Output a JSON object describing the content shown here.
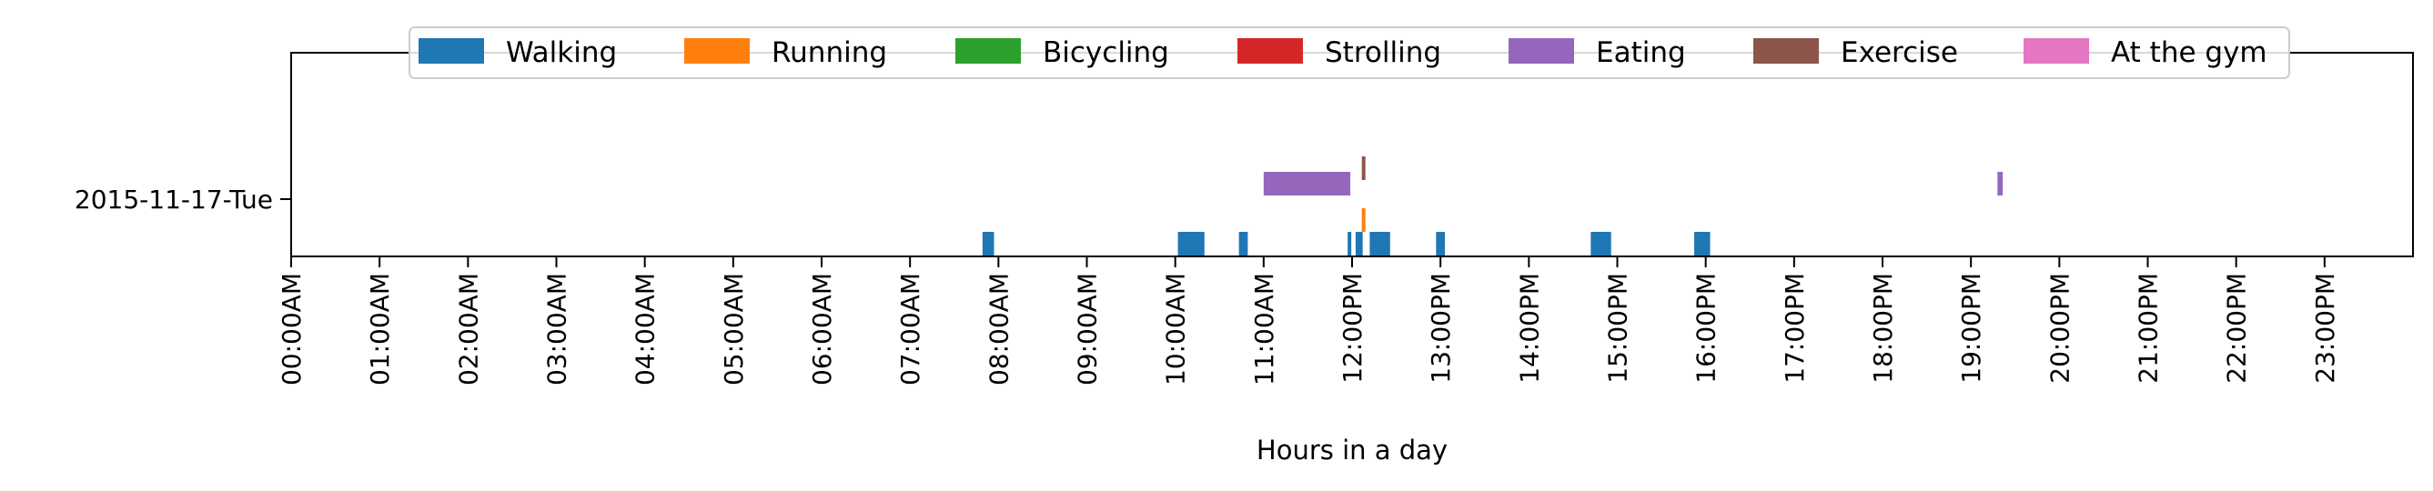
{
  "chart_data": {
    "type": "timeline",
    "xlabel": "Hours in a day",
    "ylabel": "",
    "xlim": [
      0,
      24
    ],
    "x_ticks": [
      {
        "value": 0,
        "label": "00:00AM"
      },
      {
        "value": 1,
        "label": "01:00AM"
      },
      {
        "value": 2,
        "label": "02:00AM"
      },
      {
        "value": 3,
        "label": "03:00AM"
      },
      {
        "value": 4,
        "label": "04:00AM"
      },
      {
        "value": 5,
        "label": "05:00AM"
      },
      {
        "value": 6,
        "label": "06:00AM"
      },
      {
        "value": 7,
        "label": "07:00AM"
      },
      {
        "value": 8,
        "label": "08:00AM"
      },
      {
        "value": 9,
        "label": "09:00AM"
      },
      {
        "value": 10,
        "label": "10:00AM"
      },
      {
        "value": 11,
        "label": "11:00AM"
      },
      {
        "value": 12,
        "label": "12:00PM"
      },
      {
        "value": 13,
        "label": "13:00PM"
      },
      {
        "value": 14,
        "label": "14:00PM"
      },
      {
        "value": 15,
        "label": "15:00PM"
      },
      {
        "value": 16,
        "label": "16:00PM"
      },
      {
        "value": 17,
        "label": "17:00PM"
      },
      {
        "value": 18,
        "label": "18:00PM"
      },
      {
        "value": 19,
        "label": "19:00PM"
      },
      {
        "value": 20,
        "label": "20:00PM"
      },
      {
        "value": 21,
        "label": "21:00PM"
      },
      {
        "value": 22,
        "label": "22:00PM"
      },
      {
        "value": 23,
        "label": "23:00PM"
      }
    ],
    "y_categories": [
      "2015-11-17-Tue"
    ],
    "legend_position": "top-center",
    "grid": false,
    "series": [
      {
        "name": "Walking",
        "color": "#1f77b4",
        "lane": 0,
        "intervals": [
          [
            7.82,
            7.95
          ],
          [
            10.03,
            10.33
          ],
          [
            10.72,
            10.82
          ],
          [
            11.95,
            11.99
          ],
          [
            12.04,
            12.12
          ],
          [
            12.2,
            12.43
          ],
          [
            12.95,
            13.05
          ],
          [
            14.7,
            14.93
          ],
          [
            15.87,
            16.05
          ]
        ]
      },
      {
        "name": "Running",
        "color": "#ff7f0e",
        "lane": 1,
        "intervals": [
          [
            12.11,
            12.15
          ]
        ]
      },
      {
        "name": "Bicycling",
        "color": "#2ca02c",
        "lane": 2,
        "intervals": []
      },
      {
        "name": "Strolling",
        "color": "#d62728",
        "lane": 3,
        "intervals": []
      },
      {
        "name": "Eating",
        "color": "#9467bd",
        "lane": 4,
        "intervals": [
          [
            11.0,
            11.98
          ],
          [
            19.3,
            19.36
          ]
        ]
      },
      {
        "name": "Exercise",
        "color": "#8c564b",
        "lane": 5,
        "intervals": [
          [
            12.11,
            12.15
          ]
        ]
      },
      {
        "name": "At the gym",
        "color": "#e377c2",
        "lane": 6,
        "intervals": []
      }
    ]
  }
}
